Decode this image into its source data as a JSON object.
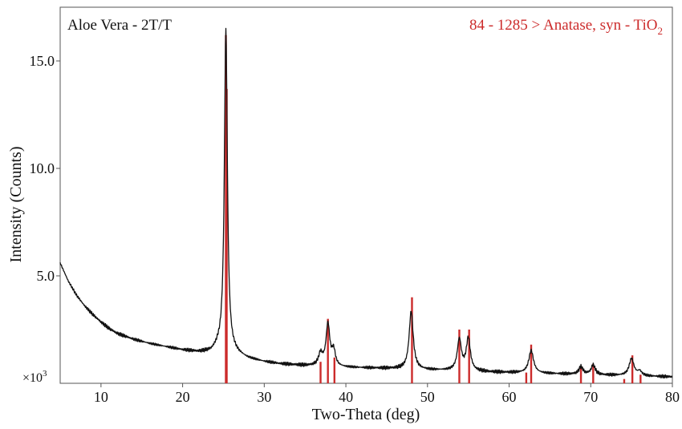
{
  "chart_data": {
    "type": "line",
    "title": "Aloe Vera - 2T/T",
    "reference_label_main": "84 - 1285 > Anatase, syn - TiO",
    "reference_label_sub": "2",
    "xlabel": "Two-Theta (deg)",
    "ylabel": "Intensity (Counts)",
    "y_multiplier_label": "×10",
    "y_multiplier_exp": "3",
    "xlim": [
      5,
      80
    ],
    "ylim": [
      0,
      17.5
    ],
    "x_ticks": [
      10,
      20,
      30,
      40,
      50,
      60,
      70,
      80
    ],
    "x_tick_labels": [
      "10",
      "20",
      "30",
      "40",
      "50",
      "60",
      "70",
      "80"
    ],
    "y_ticks": [
      5.0,
      10.0,
      15.0
    ],
    "y_tick_labels": [
      "5.0",
      "10.0",
      "15.0"
    ],
    "grid": false,
    "colors": {
      "pattern": "#111111",
      "reference": "#cc2b2b",
      "axis": "#555555"
    },
    "background_points": [
      [
        5.0,
        5.6
      ],
      [
        6.0,
        4.75
      ],
      [
        7.0,
        4.1
      ],
      [
        8.0,
        3.6
      ],
      [
        9.0,
        3.2
      ],
      [
        10.0,
        2.85
      ],
      [
        11.0,
        2.55
      ],
      [
        12.0,
        2.32
      ],
      [
        14.0,
        2.05
      ],
      [
        16.0,
        1.85
      ],
      [
        18.0,
        1.7
      ],
      [
        20.0,
        1.55
      ],
      [
        22.0,
        1.45
      ],
      [
        23.5,
        1.45
      ],
      [
        24.3,
        1.6
      ],
      [
        26.5,
        1.35
      ],
      [
        28.0,
        1.15
      ],
      [
        30.0,
        1.0
      ],
      [
        32.0,
        0.9
      ],
      [
        35.0,
        0.82
      ],
      [
        38.0,
        0.78
      ],
      [
        40.0,
        0.74
      ],
      [
        44.0,
        0.7
      ],
      [
        46.0,
        0.68
      ],
      [
        50.0,
        0.62
      ],
      [
        52.0,
        0.6
      ],
      [
        56.0,
        0.55
      ],
      [
        58.0,
        0.52
      ],
      [
        60.0,
        0.5
      ],
      [
        64.0,
        0.46
      ],
      [
        66.0,
        0.44
      ],
      [
        68.0,
        0.42
      ],
      [
        72.0,
        0.38
      ],
      [
        74.0,
        0.36
      ],
      [
        77.0,
        0.33
      ],
      [
        80.0,
        0.3
      ]
    ],
    "peaks": [
      {
        "x": 25.3,
        "height": 15.0,
        "width": 0.22
      },
      {
        "x": 36.9,
        "height": 0.55,
        "width": 0.3
      },
      {
        "x": 37.8,
        "height": 1.95,
        "width": 0.28
      },
      {
        "x": 38.5,
        "height": 0.7,
        "width": 0.25
      },
      {
        "x": 48.0,
        "height": 2.7,
        "width": 0.3
      },
      {
        "x": 53.9,
        "height": 1.45,
        "width": 0.3
      },
      {
        "x": 55.0,
        "height": 1.5,
        "width": 0.3
      },
      {
        "x": 62.7,
        "height": 1.05,
        "width": 0.35
      },
      {
        "x": 68.8,
        "height": 0.35,
        "width": 0.3
      },
      {
        "x": 70.3,
        "height": 0.45,
        "width": 0.3
      },
      {
        "x": 75.0,
        "height": 0.8,
        "width": 0.35
      },
      {
        "x": 76.0,
        "height": 0.2,
        "width": 0.3
      }
    ],
    "reference_lines": [
      {
        "x": 25.3,
        "intensity": 16.2
      },
      {
        "x": 25.4,
        "intensity": 13.7
      },
      {
        "x": 36.9,
        "intensity": 1.0
      },
      {
        "x": 37.8,
        "intensity": 3.0
      },
      {
        "x": 38.6,
        "intensity": 1.2
      },
      {
        "x": 48.1,
        "intensity": 4.0
      },
      {
        "x": 53.9,
        "intensity": 2.5
      },
      {
        "x": 55.1,
        "intensity": 2.5
      },
      {
        "x": 62.1,
        "intensity": 0.5
      },
      {
        "x": 62.7,
        "intensity": 1.8
      },
      {
        "x": 68.8,
        "intensity": 0.8
      },
      {
        "x": 70.3,
        "intensity": 0.9
      },
      {
        "x": 74.1,
        "intensity": 0.2
      },
      {
        "x": 75.1,
        "intensity": 1.3
      },
      {
        "x": 76.1,
        "intensity": 0.4
      }
    ]
  }
}
